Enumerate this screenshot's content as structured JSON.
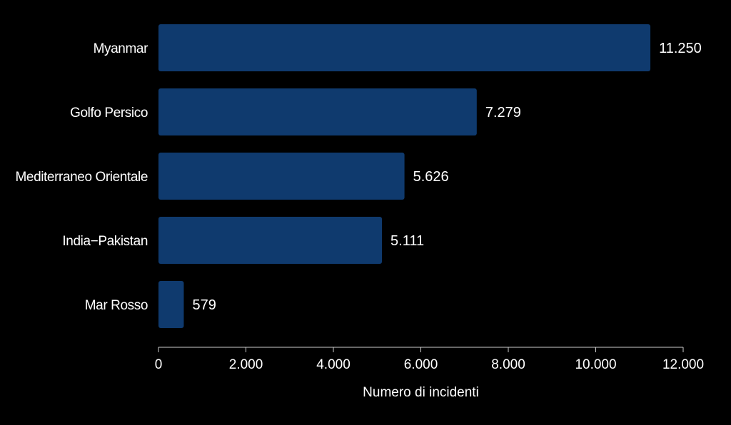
{
  "colors": {
    "background": "#000000",
    "bar": "#0f3a6e",
    "text": "#ffffff",
    "axis": "#cccccc"
  },
  "chart_data": {
    "type": "bar",
    "orientation": "horizontal",
    "categories": [
      "Myanmar",
      "Golfo Persico",
      "Mediterraneo Orientale",
      "India−Pakistan",
      "Mar Rosso"
    ],
    "values": [
      11250,
      7279,
      5626,
      5111,
      579
    ],
    "value_labels": [
      "11.250",
      "7.279",
      "5.626",
      "5.111",
      "579"
    ],
    "xlabel": "Numero di incidenti",
    "ylabel": "",
    "title": "",
    "xlim": [
      0,
      12000
    ],
    "xticks": [
      0,
      2000,
      4000,
      6000,
      8000,
      10000,
      12000
    ],
    "xtick_labels": [
      "0",
      "2.000",
      "4.000",
      "6.000",
      "8.000",
      "10.000",
      "12.000"
    ],
    "grid": false,
    "legend": "none"
  }
}
